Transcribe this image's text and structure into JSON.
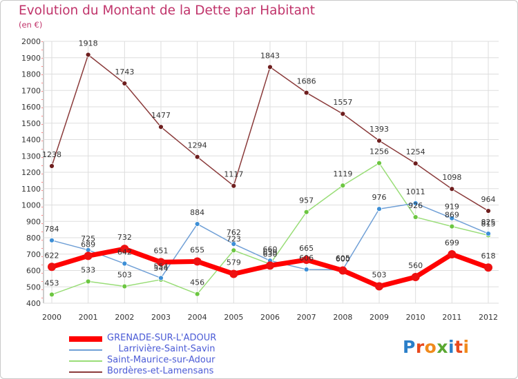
{
  "title": "Evolution du Montant de la Dette par Habitant",
  "subtitle": "(en €)",
  "logo": {
    "text": "Proxiti",
    "letter_colors": [
      "#2b7fc9",
      "#e8491d",
      "#f08a1c",
      "#5aa832",
      "#2b7fc9",
      "#e8491d",
      "#f08a1c"
    ]
  },
  "chart_data": {
    "type": "line",
    "title": "Evolution du Montant de la Dette par Habitant",
    "subtitle": "(en €)",
    "x": [
      "2000",
      "2001",
      "2002",
      "2003",
      "2004",
      "2005",
      "2006",
      "2007",
      "2008",
      "2009",
      "2010",
      "2011",
      "2012"
    ],
    "ylim": [
      400,
      2000
    ],
    "yticks": [
      400,
      500,
      600,
      700,
      800,
      900,
      1000,
      1100,
      1200,
      1300,
      1400,
      1500,
      1600,
      1700,
      1800,
      1900,
      2000
    ],
    "grid": true,
    "legend_position": "bottom-left",
    "series": [
      {
        "name": "GRENADE-SUR-L'ADOUR",
        "color": "#ff0000",
        "marker": "#ee1111",
        "width": 7,
        "radius": 6,
        "values": [
          622,
          689,
          732,
          651,
          655,
          579,
          630,
          665,
          600,
          503,
          560,
          699,
          618
        ],
        "labels": [
          "622",
          "689",
          "732",
          "651",
          "655",
          "579",
          "630",
          "665",
          "600",
          "503",
          "560",
          "699",
          "618"
        ]
      },
      {
        "name": "Larrivière-Saint-Savin",
        "color": "#6f9fd6",
        "marker": "#3d8fd6",
        "width": 1.5,
        "radius": 3.5,
        "values": [
          784,
          725,
          642,
          554,
          884,
          762,
          660,
          606,
          605,
          976,
          1011,
          919,
          825
        ],
        "labels": [
          "784",
          "725",
          "642",
          "554",
          "884",
          "762",
          "660",
          "606",
          "605",
          "976",
          "1011",
          "919",
          "825"
        ]
      },
      {
        "name": "Saint-Maurice-sur-Adour",
        "color": "#99dd77",
        "marker": "#6cc641",
        "width": 1.5,
        "radius": 3.5,
        "values": [
          453,
          533,
          503,
          544,
          456,
          723,
          639,
          957,
          1119,
          1256,
          926,
          869,
          815
        ],
        "labels": [
          "453",
          "533",
          "503",
          "544",
          "456",
          "723",
          "639",
          "957",
          "1119",
          "1256",
          "926",
          "869",
          "815"
        ]
      },
      {
        "name": "Bordères-et-Lamensans",
        "color": "#8a3a3a",
        "marker": "#6e1e1e",
        "width": 1.5,
        "radius": 3.5,
        "values": [
          1238,
          1918,
          1743,
          1477,
          1294,
          1117,
          1843,
          1686,
          1557,
          1393,
          1254,
          1098,
          964
        ],
        "labels": [
          "1238",
          "1918",
          "1743",
          "1477",
          "1294",
          "1117",
          "1843",
          "1686",
          "1557",
          "1393",
          "1254",
          "1098",
          "964"
        ]
      }
    ]
  },
  "legend": [
    {
      "label": "GRENADE-SUR-L'ADOUR",
      "color": "#ff0000",
      "thick": true
    },
    {
      "label": "    Larrivière-Saint-Savin",
      "color": "#6f9fd6",
      "thick": false
    },
    {
      "label": "Saint-Maurice-sur-Adour",
      "color": "#99dd77",
      "thick": false
    },
    {
      "label": "Bordères-et-Lamensans",
      "color": "#8a3a3a",
      "thick": false
    }
  ]
}
